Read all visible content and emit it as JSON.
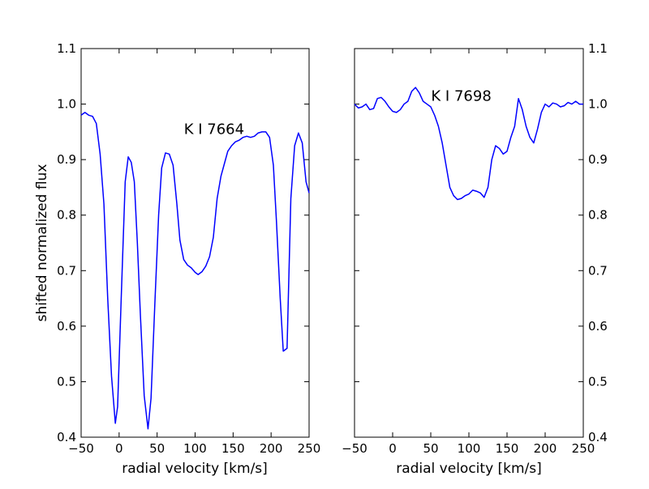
{
  "chart_data": [
    {
      "type": "line",
      "title": "",
      "xlabel": "radial velocity [km/s]",
      "ylabel": "shifted normalized flux",
      "xlim": [
        -50,
        250
      ],
      "ylim": [
        0.4,
        1.1
      ],
      "xticks": [
        -50,
        0,
        50,
        100,
        150,
        200,
        250
      ],
      "yticks": [
        0.4,
        0.5,
        0.6,
        0.7,
        0.8,
        0.9,
        1.0,
        1.1
      ],
      "xtick_labels": [
        "−50",
        "0",
        "50",
        "100",
        "150",
        "200",
        "250"
      ],
      "ytick_labels": [
        "0.4",
        "0.5",
        "0.6",
        "0.7",
        "0.8",
        "0.9",
        "1.0",
        "1.1"
      ],
      "ytick_side": "left",
      "grid": false,
      "annotation": {
        "text": "K I 7664",
        "x": 125,
        "y": 0.955
      },
      "series": [
        {
          "color": "#0000ff",
          "x": [
            -50,
            -45,
            -40,
            -35,
            -30,
            -25,
            -20,
            -15,
            -10,
            -5,
            -2,
            3,
            8,
            12,
            16,
            20,
            24,
            28,
            33,
            38,
            42,
            47,
            52,
            56,
            61,
            66,
            71,
            76,
            80,
            85,
            90,
            95,
            100,
            104,
            109,
            114,
            119,
            124,
            129,
            134,
            138,
            143,
            148,
            153,
            158,
            163,
            168,
            173,
            178,
            183,
            188,
            193,
            198,
            203,
            207,
            212,
            216,
            221,
            226,
            231,
            236,
            241,
            246,
            250
          ],
          "y": [
            0.98,
            0.985,
            0.98,
            0.978,
            0.965,
            0.91,
            0.82,
            0.65,
            0.51,
            0.425,
            0.455,
            0.66,
            0.86,
            0.905,
            0.895,
            0.86,
            0.75,
            0.62,
            0.475,
            0.415,
            0.47,
            0.64,
            0.8,
            0.885,
            0.912,
            0.91,
            0.89,
            0.82,
            0.755,
            0.72,
            0.71,
            0.705,
            0.697,
            0.693,
            0.698,
            0.708,
            0.725,
            0.76,
            0.83,
            0.87,
            0.89,
            0.915,
            0.925,
            0.932,
            0.935,
            0.94,
            0.942,
            0.94,
            0.942,
            0.948,
            0.95,
            0.95,
            0.94,
            0.89,
            0.79,
            0.65,
            0.555,
            0.56,
            0.83,
            0.925,
            0.948,
            0.93,
            0.86,
            0.84
          ]
        }
      ]
    },
    {
      "type": "line",
      "title": "",
      "xlabel": "radial velocity [km/s]",
      "ylabel": "",
      "xlim": [
        -50,
        250
      ],
      "ylim": [
        0.4,
        1.1
      ],
      "xticks": [
        -50,
        0,
        50,
        100,
        150,
        200,
        250
      ],
      "yticks": [
        0.4,
        0.5,
        0.6,
        0.7,
        0.8,
        0.9,
        1.0,
        1.1
      ],
      "xtick_labels": [
        "−50",
        "0",
        "50",
        "100",
        "150",
        "200",
        "250"
      ],
      "ytick_labels": [
        "0.4",
        "0.5",
        "0.6",
        "0.7",
        "0.8",
        "0.9",
        "1.0",
        "1.1"
      ],
      "ytick_side": "right",
      "grid": false,
      "annotation": {
        "text": "K I 7698",
        "x": 90,
        "y": 1.015
      },
      "series": [
        {
          "color": "#0000ff",
          "x": [
            -50,
            -45,
            -40,
            -35,
            -30,
            -25,
            -20,
            -15,
            -10,
            -5,
            0,
            5,
            10,
            15,
            20,
            25,
            30,
            35,
            40,
            45,
            50,
            55,
            60,
            65,
            70,
            75,
            80,
            85,
            90,
            95,
            100,
            105,
            110,
            115,
            120,
            125,
            130,
            135,
            140,
            145,
            150,
            155,
            160,
            165,
            170,
            175,
            180,
            185,
            190,
            195,
            200,
            205,
            210,
            215,
            220,
            225,
            230,
            235,
            240,
            245,
            250
          ],
          "y": [
            1.0,
            0.993,
            0.995,
            1.0,
            0.99,
            0.992,
            1.01,
            1.012,
            1.005,
            0.995,
            0.987,
            0.985,
            0.99,
            1.0,
            1.005,
            1.023,
            1.03,
            1.02,
            1.005,
            1.0,
            0.995,
            0.98,
            0.96,
            0.93,
            0.89,
            0.85,
            0.835,
            0.828,
            0.83,
            0.835,
            0.838,
            0.845,
            0.843,
            0.84,
            0.832,
            0.85,
            0.9,
            0.925,
            0.92,
            0.91,
            0.915,
            0.94,
            0.96,
            1.01,
            0.99,
            0.96,
            0.94,
            0.93,
            0.955,
            0.985,
            1.0,
            0.995,
            1.002,
            1.0,
            0.995,
            0.997,
            1.003,
            1.0,
            1.005,
            1.0,
            1.0
          ]
        }
      ]
    }
  ]
}
